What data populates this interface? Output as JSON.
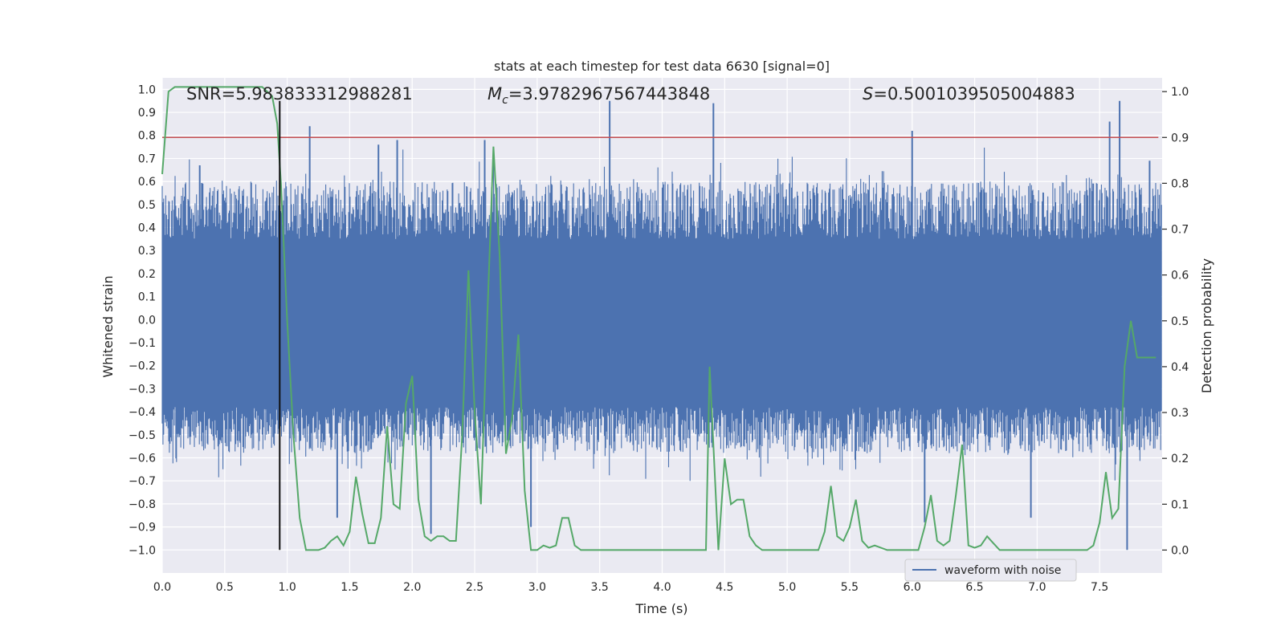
{
  "chart_data": {
    "type": "line",
    "title": "stats at each timestep for test data 6630 [signal=0]",
    "xlabel": "Time (s)",
    "ylabel_left": "Whitened strain",
    "ylabel_right": "Detection probability",
    "xlim": [
      0.0,
      8.0
    ],
    "ylim_left": [
      -1.1,
      1.05
    ],
    "ylim_right": [
      -0.05,
      1.03
    ],
    "x_ticks": [
      "0.0",
      "0.5",
      "1.0",
      "1.5",
      "2.0",
      "2.5",
      "3.0",
      "3.5",
      "4.0",
      "4.5",
      "5.0",
      "5.5",
      "6.0",
      "6.5",
      "7.0",
      "7.5"
    ],
    "y_ticks_left": [
      "1.0",
      "0.9",
      "0.8",
      "0.7",
      "0.6",
      "0.5",
      "0.4",
      "0.3",
      "0.2",
      "0.1",
      "0.0",
      "−0.1",
      "−0.2",
      "−0.3",
      "−0.4",
      "−0.5",
      "−0.6",
      "−0.7",
      "−0.8",
      "−0.9",
      "−1.0"
    ],
    "y_ticks_right": [
      "1.0",
      "0.9",
      "0.8",
      "0.7",
      "0.6",
      "0.5",
      "0.4",
      "0.3",
      "0.2",
      "0.1",
      "0.0"
    ],
    "annotations": {
      "snr": "SNR=5.983833312988281",
      "mc_symbol": "M",
      "mc_sub": "c",
      "mc_value": "=3.9782967567443848",
      "s_symbol": "S",
      "s_value": "=0.5001039505004883"
    },
    "legend": {
      "label": "waveform with noise",
      "placement": "lower-right"
    },
    "vertical_marker_x": 0.94,
    "threshold_probability": 0.9,
    "series": [
      {
        "name": "waveform with noise",
        "axis": "left",
        "color": "#4c72b0",
        "description": "dense whitened strain noise, approx. range -1.0 to 0.95",
        "spikes": [
          {
            "x": 0.3,
            "y": 0.67
          },
          {
            "x": 1.18,
            "y": 0.84
          },
          {
            "x": 1.4,
            "y": -0.86
          },
          {
            "x": 1.73,
            "y": 0.76
          },
          {
            "x": 1.88,
            "y": 0.78
          },
          {
            "x": 2.15,
            "y": -0.93
          },
          {
            "x": 2.58,
            "y": 0.78
          },
          {
            "x": 2.95,
            "y": -0.9
          },
          {
            "x": 3.58,
            "y": 0.95
          },
          {
            "x": 4.41,
            "y": 0.94
          },
          {
            "x": 6.0,
            "y": 0.82
          },
          {
            "x": 6.1,
            "y": -0.88
          },
          {
            "x": 6.95,
            "y": -0.86
          },
          {
            "x": 7.58,
            "y": 0.86
          },
          {
            "x": 7.66,
            "y": 0.95
          },
          {
            "x": 7.72,
            "y": -1.0
          },
          {
            "x": 7.9,
            "y": 0.69
          }
        ]
      },
      {
        "name": "detection probability",
        "axis": "right",
        "color": "#55a868",
        "x": [
          0.0,
          0.05,
          0.1,
          0.2,
          0.4,
          0.6,
          0.8,
          0.88,
          0.92,
          0.95,
          1.0,
          1.05,
          1.1,
          1.15,
          1.2,
          1.25,
          1.3,
          1.35,
          1.4,
          1.45,
          1.5,
          1.55,
          1.6,
          1.65,
          1.7,
          1.75,
          1.8,
          1.85,
          1.9,
          1.95,
          2.0,
          2.05,
          2.1,
          2.15,
          2.2,
          2.25,
          2.3,
          2.35,
          2.4,
          2.45,
          2.5,
          2.55,
          2.6,
          2.65,
          2.7,
          2.75,
          2.8,
          2.85,
          2.9,
          2.95,
          3.0,
          3.05,
          3.1,
          3.15,
          3.2,
          3.25,
          3.3,
          3.35,
          3.4,
          3.45,
          3.5,
          3.55,
          3.6,
          3.65,
          3.7,
          3.75,
          3.8,
          3.85,
          3.9,
          3.95,
          4.0,
          4.1,
          4.2,
          4.25,
          4.3,
          4.35,
          4.38,
          4.45,
          4.5,
          4.55,
          4.6,
          4.65,
          4.7,
          4.75,
          4.8,
          4.9,
          5.0,
          5.1,
          5.2,
          5.25,
          5.3,
          5.35,
          5.4,
          5.45,
          5.5,
          5.55,
          5.6,
          5.65,
          5.7,
          5.8,
          5.9,
          6.0,
          6.05,
          6.1,
          6.15,
          6.2,
          6.25,
          6.3,
          6.35,
          6.4,
          6.45,
          6.5,
          6.55,
          6.6,
          6.65,
          6.7,
          6.8,
          6.9,
          7.0,
          7.1,
          7.2,
          7.3,
          7.4,
          7.45,
          7.5,
          7.55,
          7.6,
          7.65,
          7.7,
          7.75,
          7.8,
          7.85,
          7.9,
          7.95
        ],
        "y": [
          0.82,
          1.0,
          1.01,
          1.01,
          1.01,
          1.01,
          1.01,
          0.99,
          0.93,
          0.8,
          0.5,
          0.25,
          0.07,
          0.0,
          0.0,
          0.0,
          0.005,
          0.02,
          0.03,
          0.01,
          0.04,
          0.16,
          0.08,
          0.015,
          0.015,
          0.07,
          0.27,
          0.1,
          0.09,
          0.32,
          0.38,
          0.11,
          0.03,
          0.02,
          0.03,
          0.03,
          0.02,
          0.02,
          0.25,
          0.61,
          0.3,
          0.1,
          0.5,
          0.88,
          0.64,
          0.21,
          0.29,
          0.47,
          0.13,
          0.0,
          0.0,
          0.01,
          0.005,
          0.01,
          0.07,
          0.07,
          0.01,
          0.0,
          0.0,
          0.0,
          0.0,
          0.0,
          0.0,
          0.0,
          0.0,
          0.0,
          0.0,
          0.0,
          0.0,
          0.0,
          0.0,
          0.0,
          0.0,
          0.0,
          0.0,
          0.0,
          0.4,
          0.0,
          0.2,
          0.1,
          0.11,
          0.11,
          0.03,
          0.01,
          0.0,
          0.0,
          0.0,
          0.0,
          0.0,
          0.0,
          0.04,
          0.14,
          0.03,
          0.02,
          0.05,
          0.11,
          0.02,
          0.005,
          0.01,
          0.0,
          0.0,
          0.0,
          0.0,
          0.05,
          0.12,
          0.02,
          0.01,
          0.02,
          0.12,
          0.23,
          0.01,
          0.005,
          0.01,
          0.03,
          0.015,
          0.0,
          0.0,
          0.0,
          0.0,
          0.0,
          0.0,
          0.0,
          0.0,
          0.01,
          0.06,
          0.17,
          0.07,
          0.09,
          0.4,
          0.5,
          0.42,
          0.42,
          0.42,
          0.42
        ]
      }
    ]
  }
}
